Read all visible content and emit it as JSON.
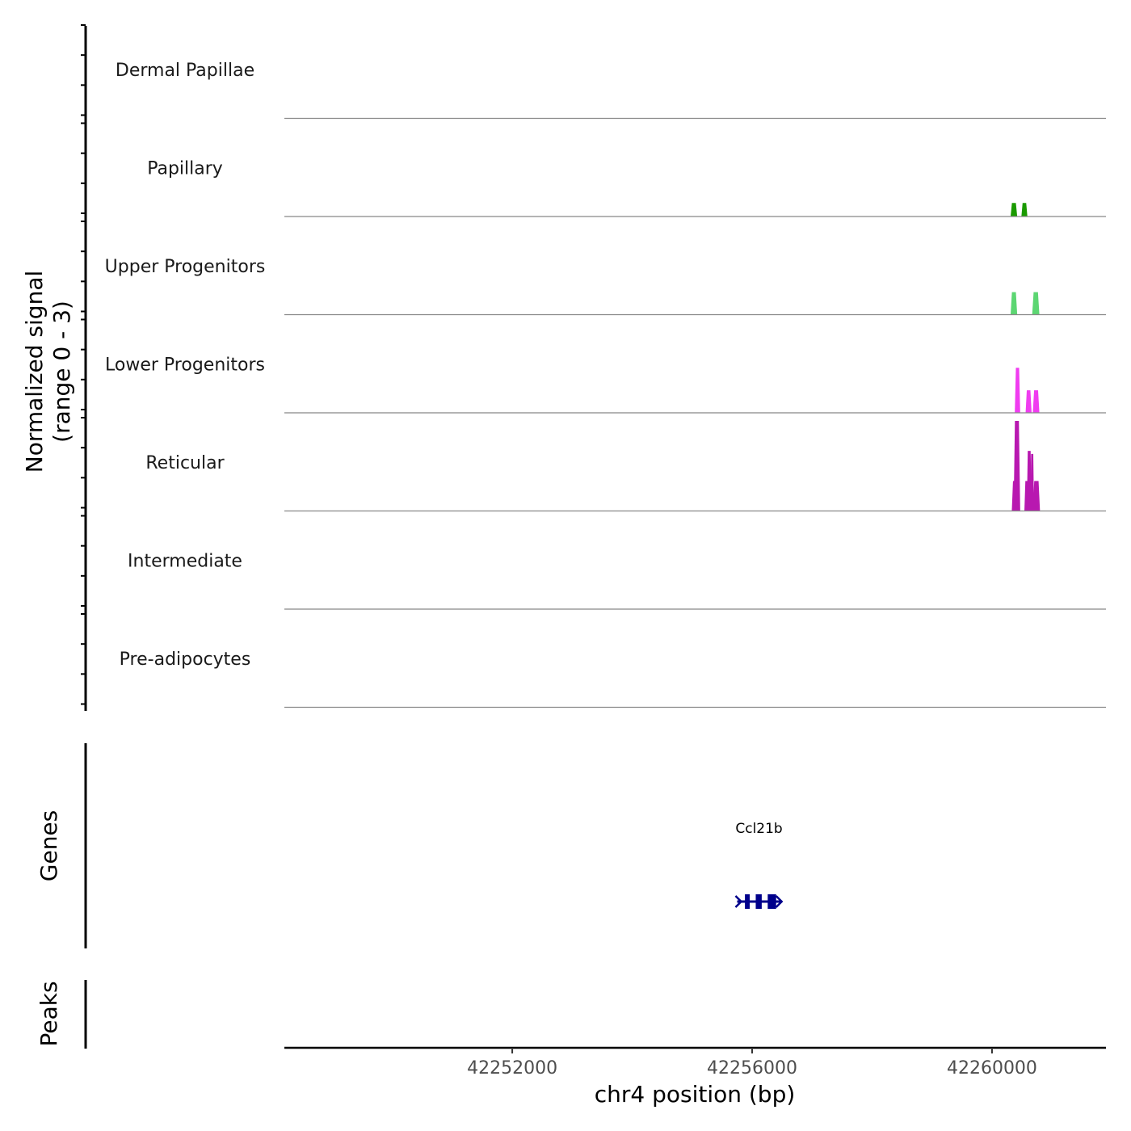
{
  "chart_data": {
    "type": "area",
    "title": "",
    "chromosome": "chr4",
    "xlabel": "chr4 position (bp)",
    "xlim": [
      42248200,
      42261900
    ],
    "x_ticks": [
      42252000,
      42256000,
      42260000
    ],
    "x_tick_labels": [
      "42252000",
      "42256000",
      "42260000"
    ],
    "ylabel": "Normalized signal",
    "ylabel_range": "(range 0 - 3)",
    "ylim": [
      0,
      3
    ],
    "coverage_tracks": [
      {
        "name": "Dermal Papillae",
        "color": "#7fbf00",
        "peaks": []
      },
      {
        "name": "Papillary",
        "color": "#1a9a00",
        "peaks": [
          {
            "start": 42260310,
            "end": 42260420,
            "height": 0.45
          },
          {
            "start": 42260490,
            "end": 42260590,
            "height": 0.45
          }
        ]
      },
      {
        "name": "Upper Progenitors",
        "color": "#5cd672",
        "peaks": [
          {
            "start": 42260310,
            "end": 42260420,
            "height": 0.75
          },
          {
            "start": 42260670,
            "end": 42260790,
            "height": 0.75
          }
        ]
      },
      {
        "name": "Lower Progenitors",
        "color": "#f03cf0",
        "peaks": [
          {
            "start": 42260380,
            "end": 42260470,
            "height": 1.5
          },
          {
            "start": 42260560,
            "end": 42260660,
            "height": 0.75
          },
          {
            "start": 42260680,
            "end": 42260790,
            "height": 0.75
          }
        ]
      },
      {
        "name": "Reticular",
        "color": "#b818b0",
        "peaks": [
          {
            "start": 42260330,
            "end": 42260430,
            "height": 1.0
          },
          {
            "start": 42260360,
            "end": 42260470,
            "height": 3.0
          },
          {
            "start": 42260540,
            "end": 42260620,
            "height": 1.0
          },
          {
            "start": 42260580,
            "end": 42260660,
            "height": 2.0
          },
          {
            "start": 42260640,
            "end": 42260700,
            "height": 1.9
          },
          {
            "start": 42260680,
            "end": 42260800,
            "height": 1.0
          }
        ]
      },
      {
        "name": "Intermediate",
        "color": "#6a3d9a",
        "peaks": []
      },
      {
        "name": "Pre-adipocytes",
        "color": "#3b3bb8",
        "peaks": []
      }
    ],
    "genes_track_label": "Genes",
    "genes": [
      {
        "name": "Ccl21b",
        "start": 42255750,
        "end": 42256480,
        "color": "#00008b",
        "strand": "+",
        "exons": [
          [
            42255880,
            42255960
          ],
          [
            42256060,
            42256160
          ],
          [
            42256260,
            42256400
          ]
        ]
      }
    ],
    "peaks_track_label": "Peaks",
    "peak_regions": []
  }
}
